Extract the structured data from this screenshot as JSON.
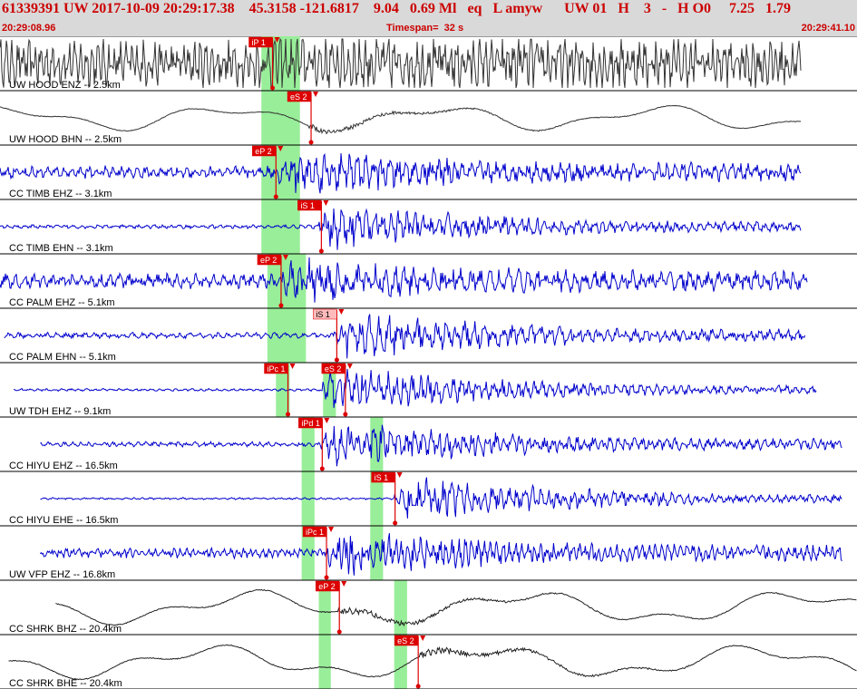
{
  "header": {
    "line1": "61339391 UW 2017-10-09 20:29:17.38    45.3158 -121.6817    9.04   0.69 Ml   eq   L amyw      UW 01   H    3   -   H O0     7.25   1.79",
    "start_time": "20:29:08.96",
    "timespan": "Timespan=  32 s",
    "end_time": "20:29:41.10"
  },
  "chart_data": {
    "type": "seismogram",
    "start_time": "20:29:08.96",
    "end_time": "20:29:41.10",
    "timespan_s": 32,
    "colors": {
      "highlight": "#99ee99",
      "pick": "#dd0000",
      "pick_light": "#ffbbbb",
      "trace_black": "#333333",
      "trace_blue": "#0000cc"
    },
    "traces": [
      {
        "label": "UW HOOD ENZ -- 2.5km",
        "color": "#333333",
        "amp": 0.45,
        "noise": 0.95,
        "freq": 1.0,
        "start": 0.0,
        "end": 0.935,
        "onset": 0.3,
        "picks": [
          {
            "label": "iP 1",
            "t": 0.318,
            "style": "red"
          }
        ],
        "highlights": [
          0.305,
          0.35
        ]
      },
      {
        "label": "UW HOOD BHN -- 2.5km",
        "color": "#333333",
        "amp": 0.35,
        "noise": 0.35,
        "freq": 0.15,
        "start": 0.0,
        "end": 0.935,
        "onset": 0.36,
        "picks": [
          {
            "label": "eS 2",
            "t": 0.363,
            "style": "red"
          }
        ],
        "highlights": [
          0.305,
          0.35
        ]
      },
      {
        "label": "CC TIMB EHZ -- 3.1km",
        "color": "#0000cc",
        "amp": 0.45,
        "noise": 0.25,
        "freq": 0.7,
        "start": 0.0,
        "end": 0.935,
        "onset": 0.325,
        "picks": [
          {
            "label": "eP 2",
            "t": 0.322,
            "style": "red"
          }
        ],
        "highlights": [
          0.305,
          0.35
        ]
      },
      {
        "label": "CC TIMB EHN -- 3.1km",
        "color": "#0000cc",
        "amp": 0.45,
        "noise": 0.08,
        "freq": 0.7,
        "start": 0.0,
        "end": 0.935,
        "onset": 0.372,
        "picks": [
          {
            "label": "iS 1",
            "t": 0.375,
            "style": "red"
          }
        ],
        "highlights": [
          0.305,
          0.35
        ]
      },
      {
        "label": "CC PALM EHZ -- 5.1km",
        "color": "#0000cc",
        "amp": 0.45,
        "noise": 0.3,
        "freq": 0.6,
        "start": 0.0,
        "end": 0.942,
        "onset": 0.33,
        "picks": [
          {
            "label": "eP 2",
            "t": 0.328,
            "style": "red"
          }
        ],
        "highlights": [
          0.312,
          0.357
        ]
      },
      {
        "label": "CC PALM EHN -- 5.1km",
        "color": "#0000cc",
        "amp": 0.45,
        "noise": 0.12,
        "freq": 0.6,
        "start": 0.005,
        "end": 0.94,
        "onset": 0.39,
        "picks": [
          {
            "label": "iS 1",
            "t": 0.393,
            "style": "light"
          }
        ],
        "highlights": [
          0.312,
          0.357
        ]
      },
      {
        "label": "UW TDH EHZ -- 9.1km",
        "color": "#0000cc",
        "amp": 0.45,
        "noise": 0.05,
        "freq": 0.7,
        "start": 0.016,
        "end": 0.953,
        "onset": 0.375,
        "picks": [
          {
            "label": "iPc 1",
            "t": 0.336,
            "style": "red"
          },
          {
            "label": "eS 2",
            "t": 0.403,
            "style": "red"
          }
        ],
        "highlights": [
          0.322,
          0.338,
          0.377,
          0.392
        ]
      },
      {
        "label": "CC HIYU EHZ -- 16.5km",
        "color": "#0000cc",
        "amp": 0.45,
        "noise": 0.1,
        "freq": 0.7,
        "start": 0.047,
        "end": 0.983,
        "onset": 0.375,
        "picks": [
          {
            "label": "iPd 1",
            "t": 0.376,
            "style": "red"
          }
        ],
        "highlights": [
          0.352,
          0.367,
          0.432,
          0.447
        ]
      },
      {
        "label": "CC HIYU EHE -- 16.5km",
        "color": "#0000cc",
        "amp": 0.45,
        "noise": 0.04,
        "freq": 0.7,
        "start": 0.047,
        "end": 0.983,
        "onset": 0.46,
        "picks": [
          {
            "label": "iS 1",
            "t": 0.461,
            "style": "red"
          }
        ],
        "highlights": [
          0.352,
          0.367,
          0.432,
          0.447
        ]
      },
      {
        "label": "UW VFP EHZ -- 16.8km",
        "color": "#0000cc",
        "amp": 0.45,
        "noise": 0.2,
        "freq": 0.9,
        "start": 0.047,
        "end": 0.983,
        "onset": 0.378,
        "picks": [
          {
            "label": "iPc 1",
            "t": 0.381,
            "style": "red"
          }
        ],
        "highlights": [
          0.352,
          0.367,
          0.432,
          0.447
        ]
      },
      {
        "label": "CC SHRK BHZ -- 20.4km",
        "color": "#222222",
        "amp": 0.45,
        "noise": 0.02,
        "freq": 0.12,
        "start": 0.065,
        "end": 1.0,
        "onset": 0.395,
        "picks": [
          {
            "label": "eP 2",
            "t": 0.396,
            "style": "red"
          }
        ],
        "highlights": [
          0.372,
          0.386,
          0.46,
          0.475
        ]
      },
      {
        "label": "CC SHRK BHE -- 20.4km",
        "color": "#222222",
        "amp": 0.45,
        "noise": 0.02,
        "freq": 0.12,
        "start": 0.01,
        "end": 1.0,
        "onset": 0.49,
        "picks": [
          {
            "label": "eS 2",
            "t": 0.488,
            "style": "red"
          }
        ],
        "highlights": [
          0.372,
          0.386,
          0.46,
          0.475
        ]
      }
    ]
  }
}
